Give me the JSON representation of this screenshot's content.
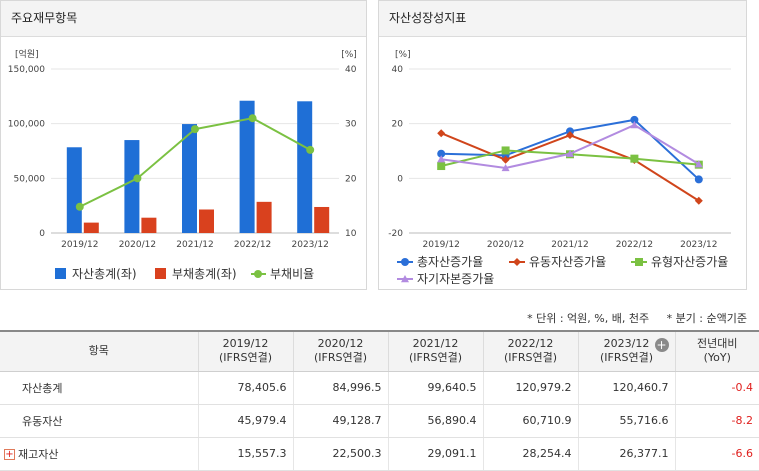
{
  "panels": {
    "left_title": "주요재무항목",
    "right_title": "자산성장성지표"
  },
  "chart_data": [
    {
      "type": "bar",
      "title": "주요재무항목",
      "categories": [
        "2019/12",
        "2020/12",
        "2021/12",
        "2022/12",
        "2023/12"
      ],
      "y_left_unit": "[억원]",
      "y_right_unit": "[%]",
      "y_left_ticks": [
        "150,000",
        "100,000",
        "50,000",
        "0"
      ],
      "y_right_ticks": [
        "40",
        "30",
        "20",
        "10"
      ],
      "y_left_lim": [
        0,
        150000
      ],
      "y_right_lim": [
        10,
        40
      ],
      "series": [
        {
          "name": "자산총계(좌)",
          "kind": "bar",
          "axis": "left",
          "color": "#1f6fd6",
          "values": [
            78405.6,
            84996.5,
            99640.5,
            120979.2,
            120460.7
          ]
        },
        {
          "name": "부채총계(좌)",
          "kind": "bar",
          "axis": "left",
          "color": "#d9411e",
          "values": [
            9500,
            14000,
            21500,
            28500,
            23800
          ]
        },
        {
          "name": "부채비율",
          "kind": "line",
          "axis": "right",
          "color": "#7bc142",
          "values": [
            14.8,
            20.0,
            29.0,
            31.0,
            25.2
          ]
        }
      ],
      "legend_position": "bottom",
      "grid": true
    },
    {
      "type": "line",
      "title": "자산성장성지표",
      "categories": [
        "2019/12",
        "2020/12",
        "2021/12",
        "2022/12",
        "2023/12"
      ],
      "y_unit": "[%]",
      "y_ticks": [
        "40",
        "20",
        "0",
        "-20"
      ],
      "ylim": [
        -20,
        40
      ],
      "series": [
        {
          "name": "총자산증가율",
          "marker": "circle",
          "color": "#2b6fd8",
          "values": [
            9.0,
            8.4,
            17.2,
            21.4,
            -0.4
          ]
        },
        {
          "name": "유동자산증가율",
          "marker": "diamond",
          "color": "#d0451b",
          "values": [
            16.5,
            6.8,
            15.8,
            6.7,
            -8.2
          ]
        },
        {
          "name": "유형자산증가율",
          "marker": "square",
          "color": "#7bc142",
          "values": [
            4.5,
            10.2,
            8.8,
            7.2,
            5.0
          ]
        },
        {
          "name": "자기자본증가율",
          "marker": "triangle",
          "color": "#b28be0",
          "values": [
            7.0,
            3.8,
            9.0,
            19.5,
            5.2
          ]
        }
      ],
      "legend_position": "bottom",
      "grid": true
    }
  ],
  "notes": {
    "unit": "* 단위 : 억원, %, 배, 천주",
    "period": "* 분기 : 순액기준"
  },
  "table": {
    "header_item": "항목",
    "columns": [
      {
        "year": "2019/12",
        "basis": "(IFRS연결)"
      },
      {
        "year": "2020/12",
        "basis": "(IFRS연결)"
      },
      {
        "year": "2021/12",
        "basis": "(IFRS연결)"
      },
      {
        "year": "2022/12",
        "basis": "(IFRS연결)"
      },
      {
        "year": "2023/12",
        "basis": "(IFRS연결)"
      }
    ],
    "yoy_header": "전년대비",
    "yoy_sub": "(YoY)",
    "plus_icon": "+",
    "expand_icon": "+",
    "rows": [
      {
        "label": "자산총계",
        "values": [
          "78,405.6",
          "84,996.5",
          "99,640.5",
          "120,979.2",
          "120,460.7"
        ],
        "yoy": "-0.4"
      },
      {
        "label": "유동자산",
        "values": [
          "45,979.4",
          "49,128.7",
          "56,890.4",
          "60,710.9",
          "55,716.6"
        ],
        "yoy": "-8.2"
      },
      {
        "label": "재고자산",
        "values": [
          "15,557.3",
          "22,500.3",
          "29,091.1",
          "28,254.4",
          "26,377.1"
        ],
        "yoy": "-6.6"
      }
    ]
  }
}
